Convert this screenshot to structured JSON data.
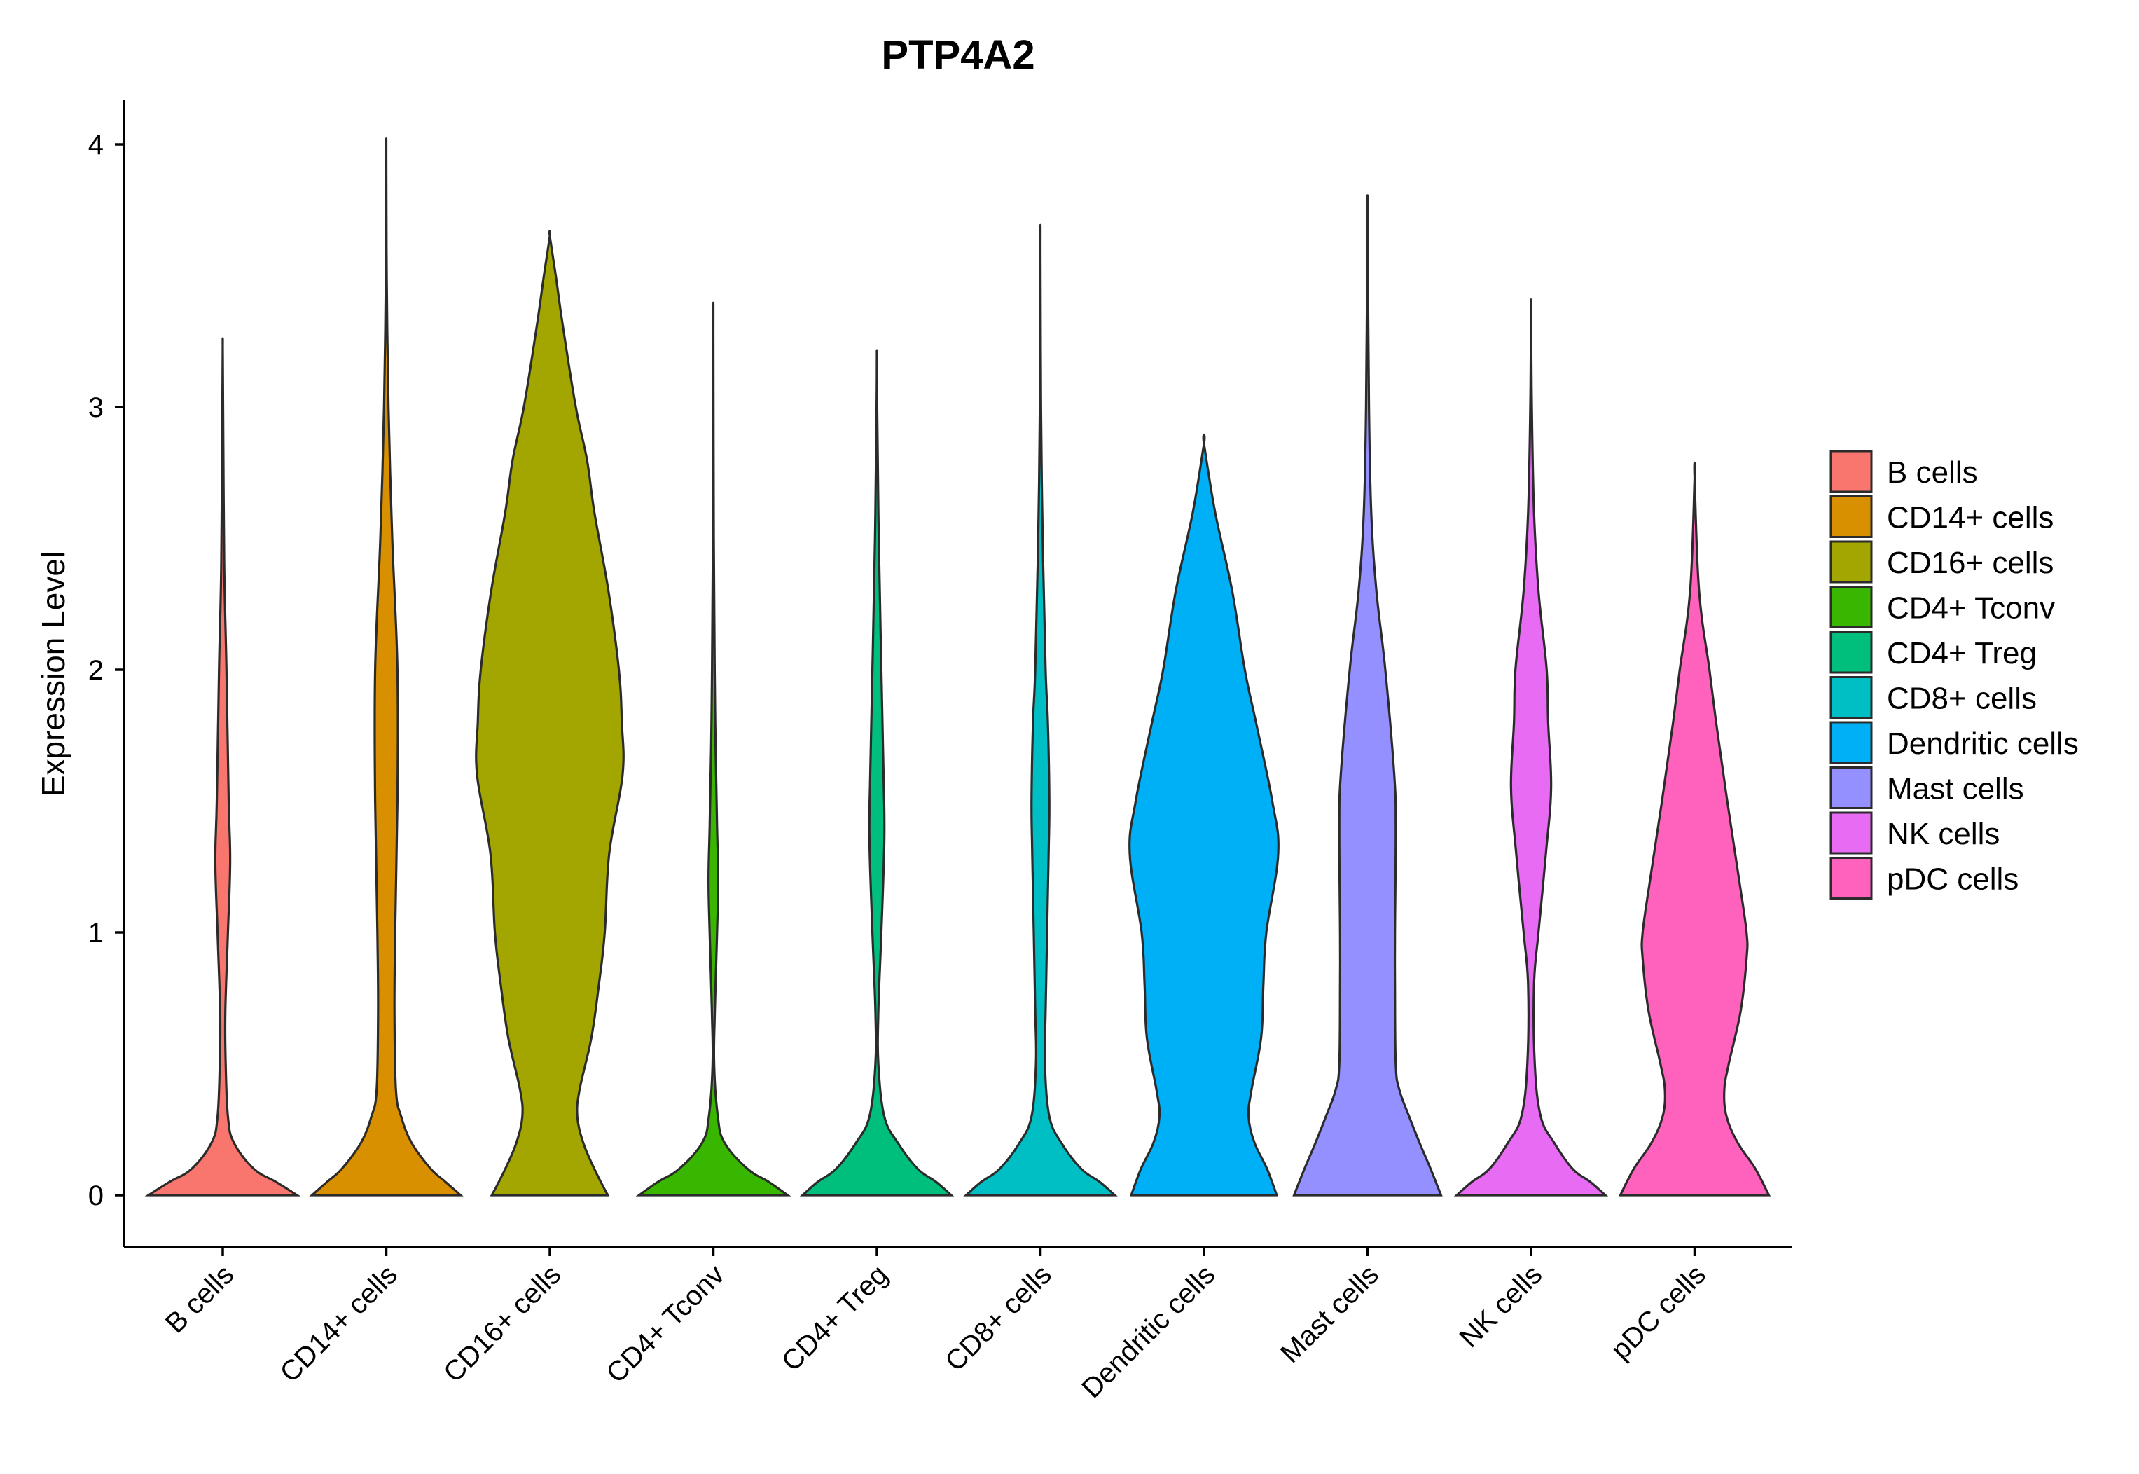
{
  "chart_data": {
    "type": "violin",
    "title": "PTP4A2",
    "xlabel": "",
    "ylabel": "Expression Level",
    "ylim": [
      -0.2,
      4.15
    ],
    "yticks": [
      0,
      1,
      2,
      3,
      4
    ],
    "grid": false,
    "legend_position": "right",
    "categories": [
      "B cells",
      "CD14+ cells",
      "CD16+ cells",
      "CD4+ Tconv",
      "CD4+ Treg",
      "CD8+ cells",
      "Dendritic cells",
      "Mast cells",
      "NK cells",
      "pDC cells"
    ],
    "colors": [
      "#F8766D",
      "#D89000",
      "#A3A500",
      "#39B600",
      "#00BF7D",
      "#00BFC4",
      "#00B0F6",
      "#9590FF",
      "#E76BF3",
      "#FF62BC"
    ],
    "max_values": [
      3.23,
      3.96,
      3.65,
      3.29,
      3.19,
      3.61,
      2.86,
      3.71,
      3.36,
      2.73
    ],
    "density_profiles": [
      [
        [
          0,
          1.0
        ],
        [
          0.05,
          0.72
        ],
        [
          0.1,
          0.42
        ],
        [
          0.2,
          0.15
        ],
        [
          0.3,
          0.07
        ],
        [
          0.5,
          0.04
        ],
        [
          0.7,
          0.035
        ],
        [
          1.0,
          0.07
        ],
        [
          1.27,
          0.1
        ],
        [
          1.5,
          0.08
        ],
        [
          2.0,
          0.05
        ],
        [
          2.4,
          0.02
        ],
        [
          3.0,
          0.005
        ],
        [
          3.23,
          0.0
        ]
      ],
      [
        [
          0,
          1.0
        ],
        [
          0.05,
          0.8
        ],
        [
          0.1,
          0.6
        ],
        [
          0.2,
          0.34
        ],
        [
          0.3,
          0.2
        ],
        [
          0.4,
          0.13
        ],
        [
          0.7,
          0.11
        ],
        [
          1.0,
          0.12
        ],
        [
          1.5,
          0.15
        ],
        [
          2.0,
          0.15
        ],
        [
          2.5,
          0.08
        ],
        [
          3.0,
          0.03
        ],
        [
          3.5,
          0.006
        ],
        [
          3.96,
          0.0
        ]
      ],
      [
        [
          0,
          0.78
        ],
        [
          0.1,
          0.6
        ],
        [
          0.2,
          0.45
        ],
        [
          0.3,
          0.37
        ],
        [
          0.4,
          0.4
        ],
        [
          0.6,
          0.56
        ],
        [
          0.8,
          0.66
        ],
        [
          1.0,
          0.74
        ],
        [
          1.3,
          0.8
        ],
        [
          1.6,
          0.98
        ],
        [
          1.8,
          0.97
        ],
        [
          2.0,
          0.93
        ],
        [
          2.3,
          0.79
        ],
        [
          2.6,
          0.6
        ],
        [
          2.8,
          0.5
        ],
        [
          3.0,
          0.35
        ],
        [
          3.3,
          0.18
        ],
        [
          3.5,
          0.08
        ],
        [
          3.65,
          0.0
        ]
      ],
      [
        [
          0,
          1.0
        ],
        [
          0.05,
          0.75
        ],
        [
          0.1,
          0.46
        ],
        [
          0.2,
          0.15
        ],
        [
          0.3,
          0.06
        ],
        [
          0.5,
          0.01
        ],
        [
          0.7,
          0.02
        ],
        [
          1.0,
          0.05
        ],
        [
          1.2,
          0.065
        ],
        [
          1.4,
          0.05
        ],
        [
          1.7,
          0.03
        ],
        [
          2.0,
          0.018
        ],
        [
          2.5,
          0.006
        ],
        [
          3.29,
          0.0
        ]
      ],
      [
        [
          0,
          1.0
        ],
        [
          0.05,
          0.8
        ],
        [
          0.1,
          0.55
        ],
        [
          0.2,
          0.28
        ],
        [
          0.3,
          0.1
        ],
        [
          0.5,
          0.02
        ],
        [
          0.7,
          0.02
        ],
        [
          1.0,
          0.06
        ],
        [
          1.35,
          0.1
        ],
        [
          1.6,
          0.09
        ],
        [
          2.0,
          0.06
        ],
        [
          2.5,
          0.025
        ],
        [
          3.0,
          0.004
        ],
        [
          3.19,
          0.0
        ]
      ],
      [
        [
          0,
          1.0
        ],
        [
          0.05,
          0.8
        ],
        [
          0.1,
          0.55
        ],
        [
          0.2,
          0.28
        ],
        [
          0.3,
          0.12
        ],
        [
          0.5,
          0.06
        ],
        [
          0.7,
          0.07
        ],
        [
          1.0,
          0.09
        ],
        [
          1.3,
          0.11
        ],
        [
          1.5,
          0.12
        ],
        [
          1.8,
          0.1
        ],
        [
          2.0,
          0.07
        ],
        [
          2.5,
          0.03
        ],
        [
          3.0,
          0.008
        ],
        [
          3.61,
          0.0
        ]
      ],
      [
        [
          0,
          0.98
        ],
        [
          0.1,
          0.85
        ],
        [
          0.2,
          0.68
        ],
        [
          0.3,
          0.6
        ],
        [
          0.4,
          0.64
        ],
        [
          0.6,
          0.77
        ],
        [
          0.8,
          0.8
        ],
        [
          1.0,
          0.84
        ],
        [
          1.3,
          1.0
        ],
        [
          1.5,
          0.92
        ],
        [
          1.8,
          0.7
        ],
        [
          2.0,
          0.55
        ],
        [
          2.3,
          0.38
        ],
        [
          2.6,
          0.15
        ],
        [
          2.86,
          0.0
        ]
      ],
      [
        [
          0,
          0.99
        ],
        [
          0.1,
          0.85
        ],
        [
          0.2,
          0.7
        ],
        [
          0.3,
          0.56
        ],
        [
          0.4,
          0.43
        ],
        [
          0.5,
          0.38
        ],
        [
          0.8,
          0.37
        ],
        [
          1.0,
          0.37
        ],
        [
          1.4,
          0.38
        ],
        [
          1.6,
          0.36
        ],
        [
          2.0,
          0.24
        ],
        [
          2.3,
          0.12
        ],
        [
          2.6,
          0.05
        ],
        [
          3.0,
          0.02
        ],
        [
          3.71,
          0.0
        ]
      ],
      [
        [
          0,
          1.0
        ],
        [
          0.05,
          0.8
        ],
        [
          0.1,
          0.56
        ],
        [
          0.2,
          0.31
        ],
        [
          0.3,
          0.13
        ],
        [
          0.5,
          0.05
        ],
        [
          0.8,
          0.04
        ],
        [
          1.0,
          0.1
        ],
        [
          1.3,
          0.2
        ],
        [
          1.55,
          0.27
        ],
        [
          1.8,
          0.23
        ],
        [
          2.0,
          0.21
        ],
        [
          2.3,
          0.1
        ],
        [
          2.6,
          0.04
        ],
        [
          3.0,
          0.01
        ],
        [
          3.36,
          0.0
        ]
      ],
      [
        [
          0,
          1.0
        ],
        [
          0.1,
          0.82
        ],
        [
          0.2,
          0.58
        ],
        [
          0.3,
          0.43
        ],
        [
          0.4,
          0.4
        ],
        [
          0.5,
          0.46
        ],
        [
          0.7,
          0.62
        ],
        [
          0.9,
          0.7
        ],
        [
          1.0,
          0.7
        ],
        [
          1.2,
          0.6
        ],
        [
          1.5,
          0.44
        ],
        [
          1.8,
          0.29
        ],
        [
          2.0,
          0.2
        ],
        [
          2.3,
          0.06
        ],
        [
          2.73,
          0.0
        ]
      ]
    ],
    "legend": [
      "B cells",
      "CD14+ cells",
      "CD16+ cells",
      "CD4+ Tconv",
      "CD4+ Treg",
      "CD8+ cells",
      "Dendritic cells",
      "Mast cells",
      "NK cells",
      "pDC cells"
    ]
  }
}
